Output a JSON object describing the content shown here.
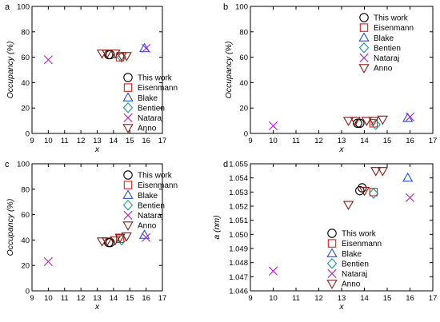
{
  "legend_order": [
    "This work",
    "Eisenmann",
    "Blake",
    "Bentien",
    "Nataraj",
    "Anno"
  ],
  "series_styles": {
    "This work": {
      "marker": "circle",
      "color": "#000000"
    },
    "Eisenmann": {
      "marker": "square",
      "color": "#e41a1c"
    },
    "Blake": {
      "marker": "triangle-up",
      "color": "#1f4fe0"
    },
    "Bentien": {
      "marker": "diamond",
      "color": "#1a9a8a"
    },
    "Nataraj": {
      "marker": "x",
      "color": "#b020c8"
    },
    "Anno": {
      "marker": "triangle-down",
      "color": "#8b1a10"
    }
  },
  "chart_data": [
    {
      "type": "scatter",
      "panel_label": "a",
      "xlabel": "x",
      "ylabel": "Occupancy (%)",
      "xlim": [
        9,
        17
      ],
      "ylim": [
        0,
        100
      ],
      "xticks": [
        9,
        10,
        11,
        12,
        13,
        14,
        15,
        16,
        17
      ],
      "yticks": [
        0,
        20,
        40,
        60,
        80,
        100
      ],
      "ytick_decimals": 0,
      "legend_position": "bottom-right",
      "series": [
        {
          "name": "This work",
          "points": [
            [
              13.7,
              62
            ],
            [
              13.8,
              62
            ]
          ]
        },
        {
          "name": "Eisenmann",
          "points": [
            [
              14.4,
              60
            ]
          ]
        },
        {
          "name": "Blake",
          "points": [
            [
              15.9,
              67
            ]
          ]
        },
        {
          "name": "Bentien",
          "points": [
            [
              14.5,
              60
            ]
          ]
        },
        {
          "name": "Nataraj",
          "points": [
            [
              10.0,
              58
            ],
            [
              16.0,
              67
            ]
          ]
        },
        {
          "name": "Anno",
          "points": [
            [
              13.3,
              63
            ],
            [
              13.6,
              63
            ],
            [
              14.1,
              63
            ],
            [
              14.5,
              61
            ],
            [
              14.8,
              61
            ]
          ]
        }
      ]
    },
    {
      "type": "scatter",
      "panel_label": "b",
      "xlabel": "x",
      "ylabel": "Occupancy (%)",
      "xlim": [
        9,
        17
      ],
      "ylim": [
        0,
        100
      ],
      "xticks": [
        9,
        10,
        11,
        12,
        13,
        14,
        15,
        16,
        17
      ],
      "yticks": [
        0,
        20,
        40,
        60,
        80,
        100
      ],
      "ytick_decimals": 0,
      "legend_position": "top-right",
      "series": [
        {
          "name": "This work",
          "points": [
            [
              13.7,
              8
            ],
            [
              13.8,
              8
            ]
          ]
        },
        {
          "name": "Eisenmann",
          "points": [
            [
              14.4,
              8
            ]
          ]
        },
        {
          "name": "Blake",
          "points": [
            [
              15.9,
              12
            ]
          ]
        },
        {
          "name": "Bentien",
          "points": [
            [
              14.5,
              7
            ]
          ]
        },
        {
          "name": "Nataraj",
          "points": [
            [
              10.0,
              6
            ],
            [
              16.0,
              13
            ]
          ]
        },
        {
          "name": "Anno",
          "points": [
            [
              13.3,
              10
            ],
            [
              13.6,
              10
            ],
            [
              14.1,
              10
            ],
            [
              14.4,
              10
            ],
            [
              14.8,
              11
            ]
          ]
        }
      ]
    },
    {
      "type": "scatter",
      "panel_label": "c",
      "xlabel": "x",
      "ylabel": "Occupancy (%)",
      "xlim": [
        9,
        17
      ],
      "ylim": [
        0,
        100
      ],
      "xticks": [
        9,
        10,
        11,
        12,
        13,
        14,
        15,
        16,
        17
      ],
      "yticks": [
        0,
        20,
        40,
        60,
        80,
        100
      ],
      "ytick_decimals": 0,
      "legend_position": "top-right",
      "series": [
        {
          "name": "This work",
          "points": [
            [
              13.7,
              38
            ],
            [
              13.8,
              38
            ]
          ]
        },
        {
          "name": "Eisenmann",
          "points": [
            [
              14.4,
              41
            ]
          ]
        },
        {
          "name": "Blake",
          "points": [
            [
              15.9,
              44
            ]
          ]
        },
        {
          "name": "Bentien",
          "points": [
            [
              14.5,
              40
            ]
          ]
        },
        {
          "name": "Nataraj",
          "points": [
            [
              10.0,
              23
            ],
            [
              16.0,
              42
            ]
          ]
        },
        {
          "name": "Anno",
          "points": [
            [
              13.3,
              39
            ],
            [
              13.6,
              39
            ],
            [
              14.1,
              40
            ],
            [
              14.4,
              42
            ],
            [
              14.8,
              43
            ]
          ]
        }
      ]
    },
    {
      "type": "scatter",
      "panel_label": "d",
      "xlabel": "x",
      "ylabel": "a (nm)",
      "xlim": [
        9,
        17
      ],
      "ylim": [
        1.046,
        1.055
      ],
      "xticks": [
        9,
        10,
        11,
        12,
        13,
        14,
        15,
        16,
        17
      ],
      "yticks": [
        1.046,
        1.047,
        1.048,
        1.049,
        1.05,
        1.051,
        1.052,
        1.053,
        1.054,
        1.055
      ],
      "ytick_decimals": 3,
      "legend_position": "bottom-right",
      "series": [
        {
          "name": "This work",
          "points": [
            [
              13.8,
              1.0531
            ],
            [
              13.9,
              1.0533
            ]
          ]
        },
        {
          "name": "Eisenmann",
          "points": [
            [
              14.4,
              1.053
            ]
          ]
        },
        {
          "name": "Blake",
          "points": [
            [
              15.9,
              1.054
            ]
          ]
        },
        {
          "name": "Bentien",
          "points": [
            [
              14.4,
              1.0529
            ]
          ]
        },
        {
          "name": "Nataraj",
          "points": [
            [
              10.0,
              1.0474
            ],
            [
              16.0,
              1.0526
            ]
          ]
        },
        {
          "name": "Anno",
          "points": [
            [
              13.3,
              1.0521
            ],
            [
              14.0,
              1.0531
            ],
            [
              14.5,
              1.0545
            ],
            [
              14.8,
              1.0545
            ]
          ]
        }
      ]
    }
  ]
}
